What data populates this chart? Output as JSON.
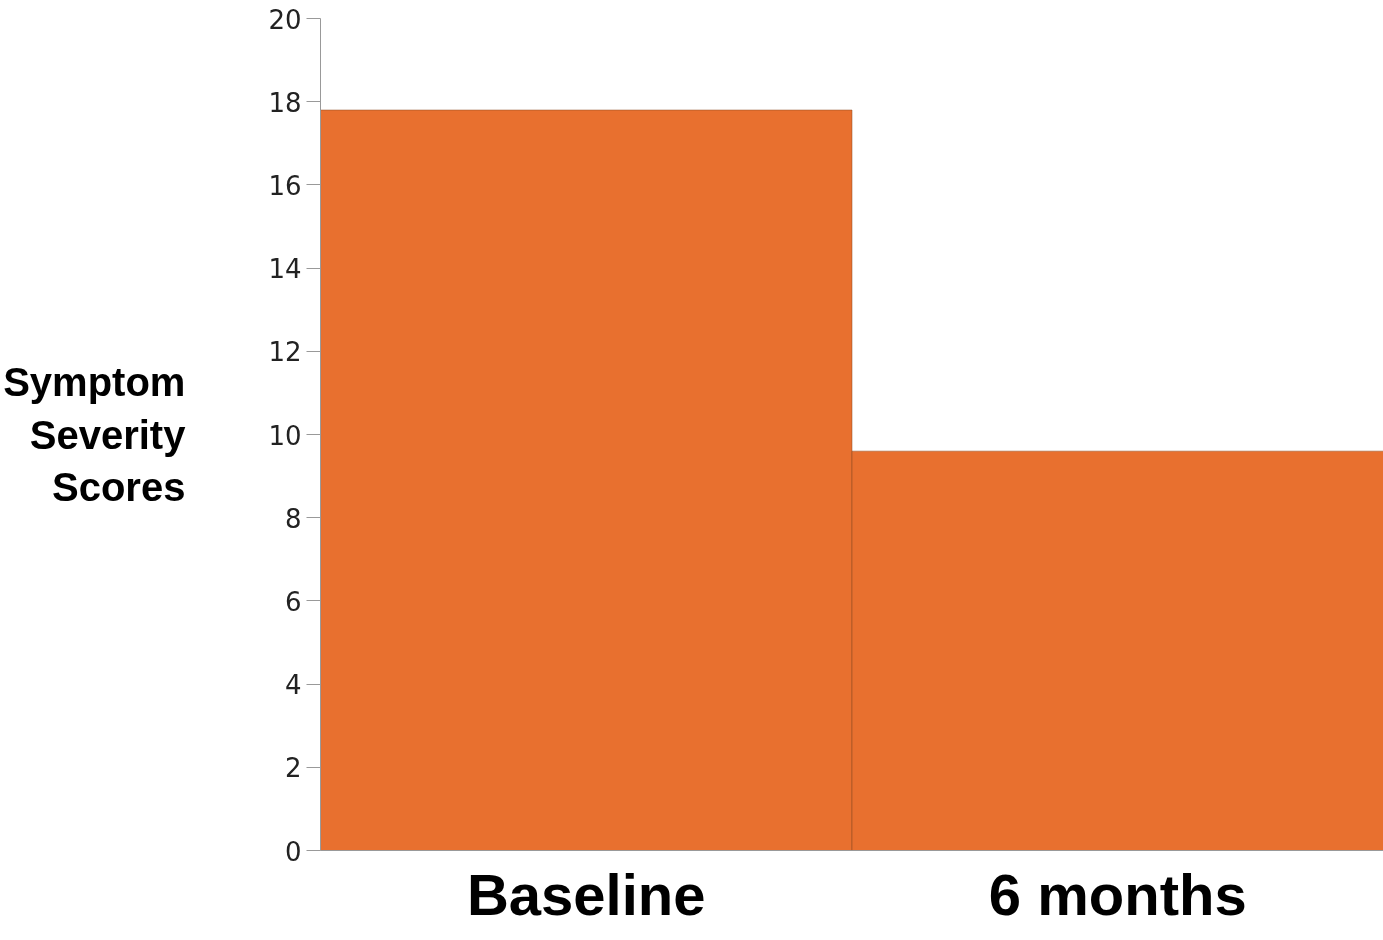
{
  "chart_data": {
    "type": "bar",
    "ylabel": "Symptom Severity Scores",
    "categories": [
      "Baseline",
      "6 months"
    ],
    "values": [
      17.8,
      9.6
    ],
    "color": "#e8702f",
    "ylim": [
      0,
      20
    ],
    "yticks": [
      0,
      2,
      4,
      6,
      8,
      10,
      12,
      14,
      16,
      18,
      20
    ],
    "grid": false
  }
}
